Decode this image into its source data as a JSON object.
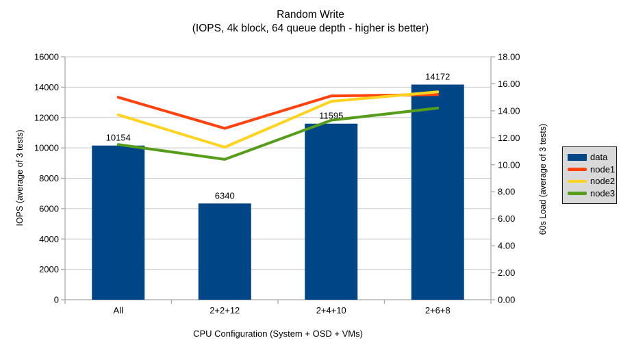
{
  "title": "Random Write",
  "subtitle": "(IOPS, 4k block, 64 queue depth - higher is better)",
  "chart_data": {
    "type": "bar+line combo",
    "categories": [
      "All",
      "2+2+12",
      "2+4+10",
      "2+6+8"
    ],
    "series": [
      {
        "name": "data",
        "type": "bar",
        "axis": "left",
        "color": "#004586",
        "values": [
          10154,
          6340,
          11595,
          14172
        ],
        "data_labels": [
          "10154",
          "6340",
          "11595",
          "14172"
        ]
      },
      {
        "name": "node1",
        "type": "line",
        "axis": "right",
        "color": "#ff420e",
        "values": [
          15.0,
          12.7,
          15.1,
          15.2
        ]
      },
      {
        "name": "node2",
        "type": "line",
        "axis": "right",
        "color": "#ffd320",
        "values": [
          13.7,
          11.3,
          14.7,
          15.4
        ]
      },
      {
        "name": "node3",
        "type": "line",
        "axis": "right",
        "color": "#579d1c",
        "values": [
          11.5,
          10.4,
          13.3,
          14.2
        ]
      }
    ],
    "left_axis": {
      "title": "IOPS (average of 3 tests)",
      "min": 0,
      "max": 16000,
      "step": 2000,
      "tick_labels": [
        "0",
        "2000",
        "4000",
        "6000",
        "8000",
        "10000",
        "12000",
        "14000",
        "16000"
      ]
    },
    "right_axis": {
      "title": "60s Load (average of 3 tests)",
      "min": 0,
      "max": 18,
      "step": 2,
      "tick_labels": [
        "0.00",
        "2.00",
        "4.00",
        "6.00",
        "8.00",
        "10.00",
        "12.00",
        "14.00",
        "16.00",
        "18.00"
      ]
    },
    "x_axis": {
      "title": "CPU Configuration (System + OSD + VMs)"
    },
    "legend": {
      "position": "right",
      "entries": [
        "data",
        "node1",
        "node2",
        "node3"
      ]
    },
    "grid": true
  },
  "colors": {
    "background": "#ffffff",
    "text": "#000000",
    "gridline": "#c9c9c9",
    "axis_line": "#a9a9a9",
    "legend_bg": "#d9d9d9",
    "legend_border": "#1a1a1a",
    "bar": "#004586",
    "node1": "#ff420e",
    "node2": "#ffd320",
    "node3": "#579d1c"
  }
}
